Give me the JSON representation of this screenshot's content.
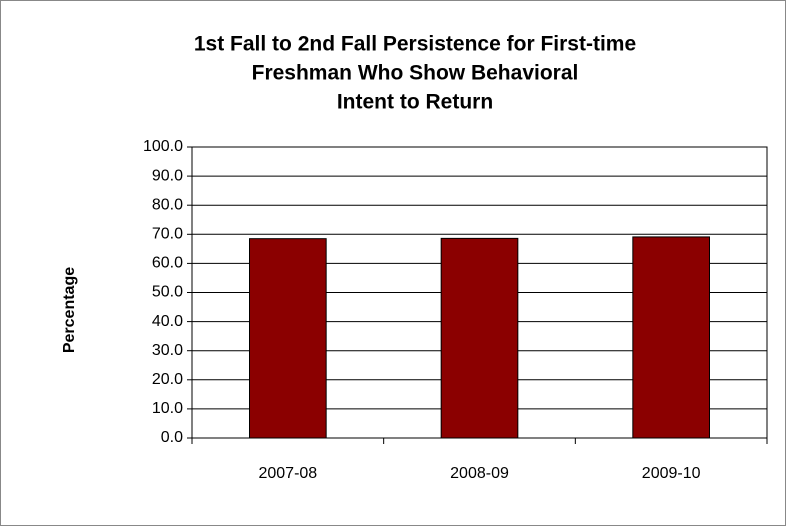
{
  "chart_data": {
    "type": "bar",
    "title": [
      "1st Fall to 2nd Fall Persistence for First-time",
      "Freshman Who Show Behavioral",
      "Intent to Return"
    ],
    "y_label": "Percentage",
    "categories": [
      "2007-08",
      "2008-09",
      "2009-10"
    ],
    "values": [
      68.5,
      68.6,
      69.1
    ],
    "color": "#8b0000",
    "ylim": [
      0,
      100
    ],
    "yticks": [
      {
        "value": 0,
        "label": "0.0"
      },
      {
        "value": 10,
        "label": "10.0"
      },
      {
        "value": 20,
        "label": "20.0"
      },
      {
        "value": 30,
        "label": "30.0"
      },
      {
        "value": 40,
        "label": "40.0"
      },
      {
        "value": 50,
        "label": "50.0"
      },
      {
        "value": 60,
        "label": "60.0"
      },
      {
        "value": 70,
        "label": "70.0"
      },
      {
        "value": 80,
        "label": "80.0"
      },
      {
        "value": 90,
        "label": "90.0"
      },
      {
        "value": 100,
        "label": "100.0"
      }
    ],
    "grid": true
  }
}
